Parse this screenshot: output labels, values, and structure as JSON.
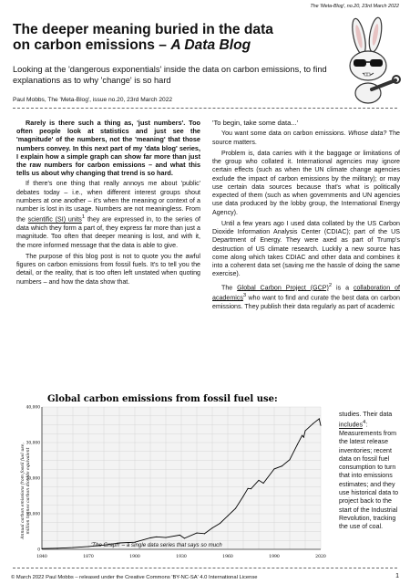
{
  "header": {
    "series": "The 'Meta-Blog', no.20, 23rd March 2022"
  },
  "title": {
    "line1": "The deeper meaning buried in the data",
    "line2_plain": "on carbon emissions – ",
    "line2_italic": "A Data Blog"
  },
  "subtitle": "Looking at the 'dangerous exponentials' inside the data on carbon emissions, to find explanations as to why 'change' is so hard",
  "byline": "Paul Mobbs, The 'Meta-Blog', issue no.20, 23rd March 2022",
  "left_column": {
    "lead": "Rarely is there such a thing as, 'just numbers'. Too often people look at statistics and just see the 'magnitude' of the numbers, not the 'meaning' that those numbers convey. In this next part of my 'data blog' series, I explain how a simple graph can show far more than just the raw numbers for carbon emissions – and what this tells us about why changing that trend is so hard.",
    "p1a": "If there's one thing that really annoys me about 'public' debates today – i.e., when different interest groups shout numbers at one another – it's when the meaning or context of a number is lost in its usage. Numbers are not meaningless. From the ",
    "p1link": "scientific (SI) units",
    "p1sup": "1",
    "p1b": " they are expressed in, to the series of data which they form a part of, they express far more than just a magnitude. Too often that deeper meaning is lost, and with it, the more informed message that the data is able to give.",
    "p2": "The purpose of this blog post is not to quote you the awful figures on carbon emissions from fossil fuels. It's to tell you the detail, or the reality, that is too often left unstated when quoting numbers – and how the data show that."
  },
  "right_column": {
    "heading": "'To begin, take some data...'",
    "p1a": "You want some data on carbon emissions. ",
    "p1i": "Whose data?",
    "p1b": " The source matters.",
    "p2": "Problem is, data carries with it the baggage or limitations of the group who collated it. International agencies may ignore certain effects (such as when the UN climate change agencies exclude the impact of carbon emissions by the military); or may use certain data sources because that's what is politically expected of them (such as when governments and UN agencies use data produced by the lobby group, the International Energy Agency).",
    "p3": "Until a few years ago I used data collated by the US Carbon Dioxide Information Analysis Center (CDIAC); part of the US Department of Energy. They were axed as part of Trump's destruction of US climate research. Luckily a new source has come along which takes CDIAC and other data and combines it into a coherent data set (saving me the hassle of doing the same exercise).",
    "p4a": "The ",
    "p4link1": "Global Carbon Project (GCP)",
    "p4sup1": "2",
    "p4b": " is a ",
    "p4link2": "collaboration of academics",
    "p4sup2": "3",
    "p4c": " who want to find and curate the best data on carbon emissions. They publish their data regularly as part of academic",
    "narrow_a": "studies. Their data ",
    "narrow_link": "includes",
    "narrow_sup": "4",
    "narrow_b": ": Measurements from the latest release inventories; recent data on fossil fuel consumption to turn that into emissions estimates; and they use historical data to project back to the start of the Industrial Revolution, tracking the use of coal."
  },
  "chart_data": {
    "type": "line",
    "title": "Global carbon emissions from fossil fuel use:",
    "ylabel": "Annual carbon emissions from fossil fuel use, million tonnes carbon dioxide equivalent",
    "xlabel": "",
    "xlim": [
      1840,
      2020
    ],
    "ylim": [
      0,
      40000
    ],
    "xticks": [
      "1840",
      "1870",
      "1900",
      "1930",
      "1960",
      "1990",
      "2020"
    ],
    "yticks": [
      "0",
      "10,000",
      "20,000",
      "30,000",
      "40,000"
    ],
    "grid": true,
    "x": [
      1840,
      1850,
      1860,
      1870,
      1880,
      1890,
      1900,
      1910,
      1914,
      1920,
      1929,
      1932,
      1940,
      1945,
      1950,
      1955,
      1960,
      1965,
      1970,
      1973,
      1975,
      1980,
      1983,
      1990,
      1995,
      2000,
      2005,
      2008,
      2009,
      2010,
      2015,
      2019,
      2020
    ],
    "values": [
      200,
      300,
      500,
      800,
      1200,
      1800,
      2000,
      3200,
      3500,
      3300,
      4000,
      3100,
      4600,
      4400,
      6000,
      7300,
      9400,
      11500,
      14900,
      17100,
      17000,
      19400,
      18600,
      22600,
      23400,
      25200,
      29500,
      32000,
      31500,
      33300,
      35300,
      36700,
      34800
    ],
    "color": "#000000",
    "caption": "'The Graph' – a single data series that says so much"
  },
  "footer": {
    "left": "© March 2022 Paul Mobbs – released under the Creative Commons 'BY-NC-SA' 4.0 International License",
    "page": "1"
  }
}
